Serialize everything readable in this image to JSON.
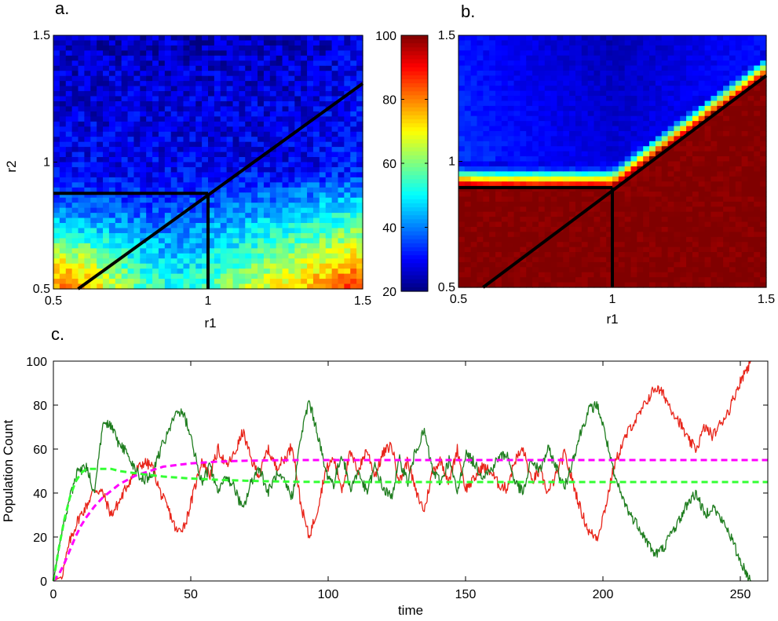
{
  "figure": {
    "panel_a_label": "a.",
    "panel_b_label": "b.",
    "panel_c_label": "c."
  },
  "chart_data": [
    {
      "type": "heatmap",
      "panel": "a.",
      "xlabel": "r1",
      "ylabel": "r2",
      "xlim": [
        0.5,
        1.5
      ],
      "ylim": [
        0.5,
        1.5
      ],
      "xticks": [
        "0.5",
        "1",
        "1.5"
      ],
      "yticks": [
        "0.5",
        "1",
        "1.5"
      ],
      "grid": false,
      "color_range": [
        20,
        100
      ],
      "colormap": "jet",
      "value_description": "noisy field: low (~25-35) in upper half, rising toward bottom-left and bottom-right corners (~80-100)",
      "overlay_lines": [
        {
          "from": [
            0.5,
            0.877
          ],
          "to": [
            1.0,
            0.877
          ]
        },
        {
          "from": [
            1.0,
            0.5
          ],
          "to": [
            1.0,
            0.877
          ]
        },
        {
          "from": [
            0.58,
            0.5
          ],
          "to": [
            1.5,
            1.31
          ]
        }
      ]
    },
    {
      "type": "heatmap",
      "panel": "b.",
      "xlabel": "r1",
      "ylabel": "",
      "xlim": [
        0.5,
        1.5
      ],
      "ylim": [
        0.5,
        1.5
      ],
      "xticks": [
        "0.5",
        "1",
        "1.5"
      ],
      "yticks": [
        "0.5",
        "1",
        "1.5"
      ],
      "grid": false,
      "color_range": [
        20,
        100
      ],
      "colormap": "jet",
      "value_description": "sharp transition: ~100 below boundary r2=0.9 (r1<1) and below diagonal (r1>1), ~20-40 above",
      "overlay_lines": [
        {
          "from": [
            0.5,
            0.896
          ],
          "to": [
            1.0,
            0.896
          ]
        },
        {
          "from": [
            1.0,
            0.5
          ],
          "to": [
            1.0,
            0.896
          ]
        },
        {
          "from": [
            0.58,
            0.5
          ],
          "to": [
            1.5,
            1.34
          ]
        }
      ]
    },
    {
      "type": "colorbar",
      "range": [
        20,
        100
      ],
      "ticks": [
        "20",
        "40",
        "60",
        "80",
        "100"
      ],
      "colormap": "jet"
    },
    {
      "type": "line",
      "panel": "c.",
      "xlabel": "time",
      "ylabel": "Population Count",
      "xlim": [
        0,
        260
      ],
      "ylim": [
        0,
        100
      ],
      "xticks": [
        "0",
        "50",
        "100",
        "150",
        "200",
        "250"
      ],
      "yticks": [
        "0",
        "20",
        "40",
        "60",
        "80",
        "100"
      ],
      "grid": false,
      "series": [
        {
          "color": "#e8251a",
          "style": "solid",
          "x": [
            0,
            3,
            6,
            9,
            12,
            15,
            18,
            21,
            24,
            27,
            30,
            33,
            36,
            39,
            42,
            45,
            48,
            51,
            54,
            57,
            60,
            63,
            66,
            69,
            72,
            75,
            78,
            81,
            84,
            87,
            90,
            93,
            96,
            99,
            102,
            105,
            108,
            111,
            114,
            117,
            120,
            123,
            126,
            129,
            132,
            135,
            138,
            141,
            144,
            147,
            150,
            153,
            156,
            159,
            162,
            165,
            168,
            171,
            174,
            177,
            180,
            183,
            186,
            189,
            192,
            195,
            198,
            201,
            204,
            207,
            210,
            213,
            216,
            219,
            222,
            225,
            228,
            231,
            234,
            237,
            240,
            243,
            246,
            249,
            252,
            254
          ],
          "values": [
            0,
            2,
            18,
            28,
            34,
            42,
            40,
            30,
            36,
            44,
            50,
            54,
            52,
            40,
            32,
            22,
            26,
            40,
            55,
            48,
            60,
            52,
            58,
            68,
            55,
            48,
            60,
            52,
            55,
            62,
            35,
            20,
            32,
            50,
            56,
            42,
            58,
            50,
            60,
            48,
            58,
            62,
            45,
            55,
            40,
            32,
            50,
            55,
            45,
            60,
            42,
            46,
            52,
            50,
            44,
            42,
            55,
            60,
            45,
            50,
            40,
            48,
            58,
            45,
            32,
            22,
            20,
            34,
            52,
            62,
            70,
            75,
            82,
            88,
            85,
            78,
            72,
            64,
            60,
            70,
            66,
            72,
            78,
            88,
            96,
            100
          ]
        },
        {
          "color": "#1f7d1f",
          "style": "solid",
          "x": [
            0,
            3,
            6,
            9,
            12,
            15,
            18,
            21,
            24,
            27,
            30,
            33,
            36,
            39,
            42,
            45,
            48,
            51,
            54,
            57,
            60,
            63,
            66,
            69,
            72,
            75,
            78,
            81,
            84,
            87,
            90,
            93,
            96,
            99,
            102,
            105,
            108,
            111,
            114,
            117,
            120,
            123,
            126,
            129,
            132,
            135,
            138,
            141,
            144,
            147,
            150,
            153,
            156,
            159,
            162,
            165,
            168,
            171,
            174,
            177,
            180,
            183,
            186,
            189,
            192,
            195,
            198,
            201,
            204,
            207,
            210,
            213,
            216,
            219,
            222,
            225,
            228,
            231,
            234,
            237,
            240,
            243,
            246,
            249,
            252,
            254
          ],
          "values": [
            0,
            22,
            38,
            50,
            52,
            40,
            72,
            70,
            62,
            58,
            50,
            46,
            48,
            60,
            68,
            78,
            74,
            60,
            45,
            52,
            40,
            48,
            42,
            32,
            45,
            52,
            40,
            48,
            45,
            38,
            65,
            82,
            68,
            50,
            44,
            58,
            42,
            50,
            40,
            52,
            42,
            38,
            55,
            45,
            60,
            68,
            50,
            45,
            55,
            40,
            58,
            54,
            48,
            50,
            56,
            58,
            45,
            40,
            55,
            50,
            60,
            52,
            42,
            55,
            68,
            78,
            80,
            66,
            48,
            38,
            30,
            25,
            18,
            12,
            15,
            22,
            28,
            36,
            40,
            30,
            34,
            28,
            22,
            12,
            4,
            0
          ]
        },
        {
          "color": "#ff00ff",
          "style": "dashed",
          "values_description": "deterministic mean, rises from 0 and saturates at ~55",
          "x": [
            0,
            2,
            4,
            6,
            8,
            10,
            12,
            15,
            18,
            21,
            24,
            27,
            30,
            35,
            40,
            50,
            60,
            70,
            80,
            90,
            100,
            150,
            200,
            260
          ],
          "values": [
            0,
            3,
            8,
            14,
            20,
            25,
            29,
            34,
            38,
            41,
            44,
            46,
            48,
            50,
            52,
            53.5,
            54.3,
            54.7,
            54.9,
            55,
            55,
            55,
            55,
            55
          ]
        },
        {
          "color": "#33ff33",
          "style": "dashed",
          "values_description": "deterministic mean, rises to ~51 then relaxes to ~45",
          "x": [
            0,
            2,
            4,
            6,
            8,
            10,
            12,
            15,
            18,
            21,
            24,
            27,
            30,
            35,
            40,
            50,
            60,
            70,
            80,
            90,
            100,
            150,
            200,
            260
          ],
          "values": [
            0,
            15,
            28,
            38,
            45,
            49,
            51,
            51,
            51,
            51,
            50,
            49.5,
            49,
            48.2,
            47.5,
            46.6,
            46,
            45.6,
            45.3,
            45.1,
            45,
            45,
            45,
            45
          ]
        }
      ]
    }
  ]
}
